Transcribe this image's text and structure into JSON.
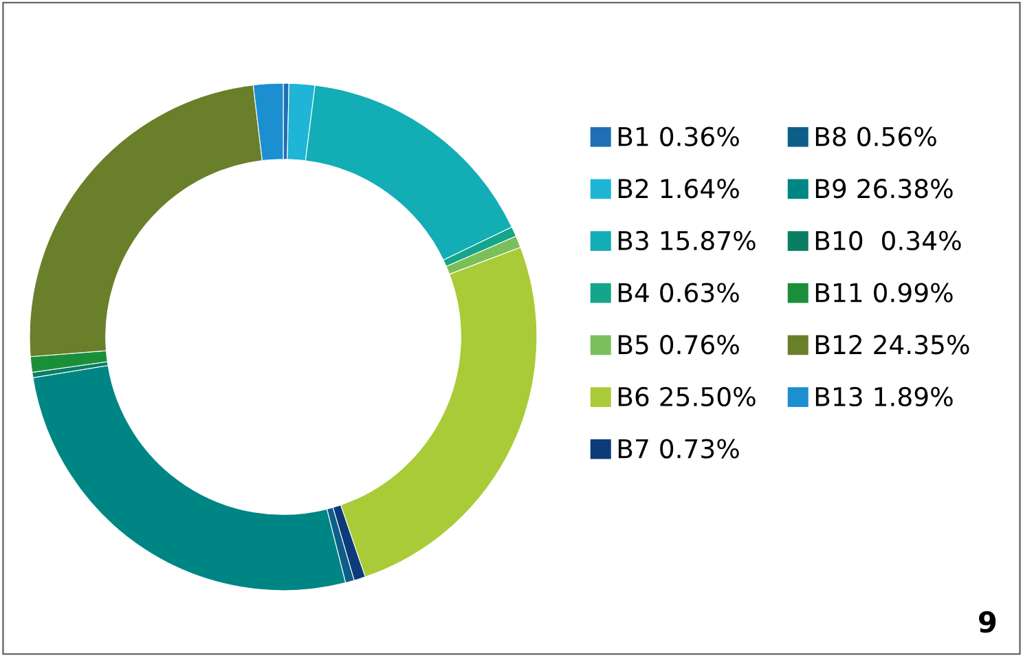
{
  "chart_data": {
    "type": "donut",
    "categories": [
      "B1 0.36%",
      "B2 1.64%",
      "B3 15.87%",
      "B4 0.63%",
      "B5 0.76%",
      "B6 25.50%",
      "B7 0.73%",
      "B8 0.56%",
      "B9 26.38%",
      "B10  0.34%",
      "B11 0.99%",
      "B12 24.35%",
      "B13 1.89%"
    ],
    "values": [
      0.36,
      1.64,
      15.87,
      0.63,
      0.76,
      25.5,
      0.73,
      0.56,
      26.38,
      0.34,
      0.99,
      24.35,
      1.89
    ],
    "colors": [
      "#1f6fb5",
      "#1fb5d6",
      "#12adb5",
      "#14a58a",
      "#7bbf5a",
      "#a9cb37",
      "#0d3a78",
      "#0d5f8a",
      "#008585",
      "#0a7e63",
      "#1a8f3a",
      "#6a7f2a",
      "#1b8fd0"
    ],
    "legend": "right",
    "annotations": [
      "9"
    ]
  }
}
